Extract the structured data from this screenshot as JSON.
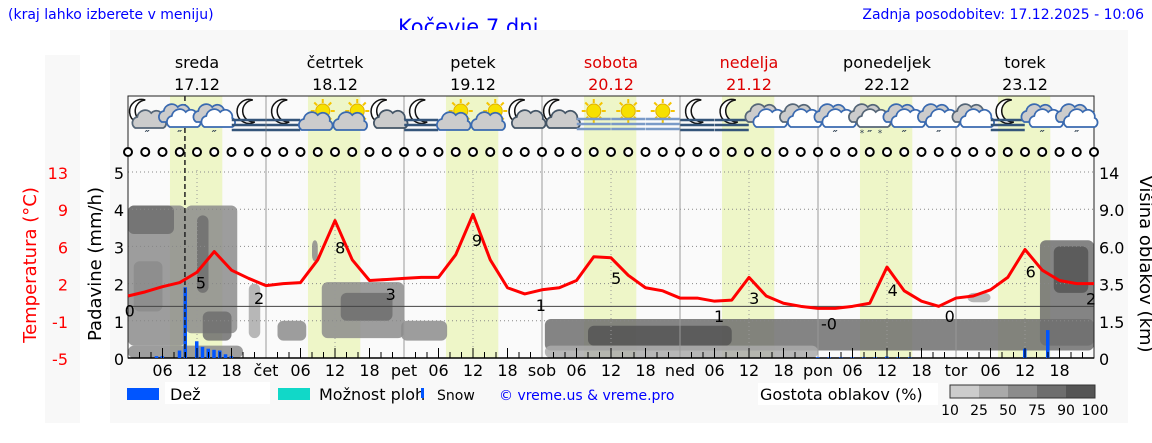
{
  "header": {
    "menu_hint": "(kraj lahko izberete v meniju)",
    "title": "Kočevje 7 dni",
    "updated": "Zadnja posodobitev: 17.12.2025 - 10:06"
  },
  "colors": {
    "link": "#0000ff",
    "temp": "#ff0000",
    "rain": "#0055ff",
    "showers": "#11d8c8",
    "daylight": "#eef6c8",
    "plot_bg": "#f8f8f8",
    "weekend": "#dd0000"
  },
  "chart_data": {
    "type": "line",
    "title": "Kočevje 7 dni",
    "days": [
      {
        "name": "sreda",
        "date": "17.12",
        "weekend": false,
        "abbr": ""
      },
      {
        "name": "četrtek",
        "date": "18.12",
        "weekend": false,
        "abbr": "čet"
      },
      {
        "name": "petek",
        "date": "19.12",
        "weekend": false,
        "abbr": "pet"
      },
      {
        "name": "sobota",
        "date": "20.12",
        "weekend": true,
        "abbr": "sob"
      },
      {
        "name": "nedelja",
        "date": "21.12",
        "weekend": true,
        "abbr": "ned"
      },
      {
        "name": "ponedeljek",
        "date": "22.12",
        "weekend": false,
        "abbr": "pon"
      },
      {
        "name": "torek",
        "date": "23.12",
        "weekend": false,
        "abbr": "tor"
      }
    ],
    "hour_ticks": [
      "06",
      "12",
      "18"
    ],
    "daylight_hours": [
      7.3,
      16.4
    ],
    "now_hour": 9.9,
    "left_axis_temp": {
      "label": "Temperatura (°C)",
      "ticks": [
        "13",
        "9",
        "6",
        "2",
        "-1",
        "-5"
      ],
      "range": [
        -5,
        13
      ]
    },
    "left_axis_precip": {
      "label": "Padavine (mm/h)",
      "ticks": [
        "0",
        "1",
        "2",
        "3",
        "4",
        "5"
      ],
      "range": [
        0,
        5
      ]
    },
    "right_axis_cloud": {
      "label": "Višina oblakov (km)",
      "ticks": [
        "0",
        "1.5",
        "3.5",
        "6.0",
        "9.0",
        "14"
      ],
      "tick_values": [
        0,
        1.5,
        3.5,
        6,
        9,
        14
      ]
    },
    "temperature_3h": [
      1.0,
      1.4,
      1.9,
      2.3,
      3.3,
      5.3,
      3.5,
      2.7,
      2.0,
      2.2,
      2.3,
      4.5,
      8.3,
      4.5,
      2.5,
      2.6,
      2.7,
      2.8,
      2.8,
      5.0,
      8.9,
      4.5,
      1.8,
      1.2,
      1.6,
      1.8,
      2.5,
      4.8,
      4.7,
      3.0,
      1.8,
      1.5,
      0.8,
      0.8,
      0.5,
      0.6,
      2.8,
      1.0,
      0.3,
      0.0,
      -0.2,
      -0.2,
      0.0,
      0.3,
      3.8,
      1.5,
      0.5,
      0.0,
      0.8,
      1.0,
      1.6,
      2.8,
      5.5,
      3.5,
      2.5,
      2.2,
      2.2
    ],
    "temperature_labels": [
      {
        "hour": 0.3,
        "text": "0"
      },
      {
        "hour": 12.7,
        "text": "5"
      },
      {
        "hour": 22.8,
        "text": "2"
      },
      {
        "hour": 36.9,
        "text": "8"
      },
      {
        "hour": 45.7,
        "text": "3"
      },
      {
        "hour": 60.7,
        "text": "9"
      },
      {
        "hour": 71.8,
        "text": "1"
      },
      {
        "hour": 84.9,
        "text": "5"
      },
      {
        "hour": 102.8,
        "text": "1"
      },
      {
        "hour": 108.9,
        "text": "3"
      },
      {
        "hour": 121.9,
        "text": "-0"
      },
      {
        "hour": 133.0,
        "text": "4"
      },
      {
        "hour": 142.9,
        "text": "0"
      },
      {
        "hour": 157.0,
        "text": "6"
      },
      {
        "hour": 167.5,
        "text": "2"
      }
    ],
    "rain_mm_h": [
      {
        "hour": 5,
        "v": 0.05
      },
      {
        "hour": 6,
        "v": 0.05
      },
      {
        "hour": 9,
        "v": 0.2
      },
      {
        "hour": 10,
        "v": 1.9
      },
      {
        "hour": 12,
        "v": 0.45
      },
      {
        "hour": 13,
        "v": 0.3
      },
      {
        "hour": 14,
        "v": 0.25
      },
      {
        "hour": 15,
        "v": 0.22
      },
      {
        "hour": 16,
        "v": 0.2
      },
      {
        "hour": 17,
        "v": 0.1
      },
      {
        "hour": 18,
        "v": 0.05
      },
      {
        "hour": 120,
        "v": 0.02
      },
      {
        "hour": 122,
        "v": 0.02
      },
      {
        "hour": 124,
        "v": 0.02
      },
      {
        "hour": 126,
        "v": 0.02
      },
      {
        "hour": 128,
        "v": 0.02
      },
      {
        "hour": 130,
        "v": 0.02
      },
      {
        "hour": 132,
        "v": 0.04
      },
      {
        "hour": 134,
        "v": 0.02
      },
      {
        "hour": 136,
        "v": 0.02
      },
      {
        "hour": 156,
        "v": 0.25
      },
      {
        "hour": 160,
        "v": 0.75
      }
    ],
    "cloud_cells": [
      {
        "h0": 0,
        "h1": 10,
        "lo": 0.5,
        "hi": 9.5,
        "d": 55
      },
      {
        "h0": 0,
        "h1": 8,
        "lo": 7,
        "hi": 9.5,
        "d": 85
      },
      {
        "h0": 1,
        "h1": 6,
        "lo": 2,
        "hi": 5,
        "d": 70
      },
      {
        "h0": 10,
        "h1": 19,
        "lo": 1,
        "hi": 9.5,
        "d": 50
      },
      {
        "h0": 12,
        "h1": 14,
        "lo": 3,
        "hi": 8.5,
        "d": 80
      },
      {
        "h0": 13,
        "h1": 18,
        "lo": 0.7,
        "hi": 2,
        "d": 80
      },
      {
        "h0": 21,
        "h1": 23,
        "lo": 0.8,
        "hi": 3.5,
        "d": 40
      },
      {
        "h0": 0,
        "h1": 20,
        "lo": 0,
        "hi": 0.5,
        "d": 55
      },
      {
        "h0": 32,
        "h1": 33,
        "lo": 5,
        "hi": 6.5,
        "d": 60
      },
      {
        "h0": 33.7,
        "h1": 48,
        "lo": 0.8,
        "hi": 3.6,
        "d": 60
      },
      {
        "h0": 37,
        "h1": 46,
        "lo": 1.5,
        "hi": 3,
        "d": 80
      },
      {
        "h0": 26,
        "h1": 31,
        "lo": 0.7,
        "hi": 1.5,
        "d": 50
      },
      {
        "h0": 47.5,
        "h1": 55.5,
        "lo": 0.7,
        "hi": 1.5,
        "d": 70
      },
      {
        "h0": 72.5,
        "h1": 168,
        "lo": 0.3,
        "hi": 1.6,
        "d": 75
      },
      {
        "h0": 80,
        "h1": 105,
        "lo": 0.5,
        "hi": 1.3,
        "d": 90
      },
      {
        "h0": 72.5,
        "h1": 120,
        "lo": 0,
        "hi": 0.5,
        "d": 40
      },
      {
        "h0": 146,
        "h1": 150,
        "lo": 2.5,
        "hi": 3,
        "d": 30
      },
      {
        "h0": 158.6,
        "h1": 168,
        "lo": 0.5,
        "hi": 6.5,
        "d": 75
      },
      {
        "h0": 161,
        "h1": 167,
        "lo": 3,
        "hi": 6,
        "d": 90
      }
    ],
    "weather_icons": [
      "moon-cloud-rain",
      "cloud-rain",
      "cloud-rain",
      "moon-fog",
      "moon-fog",
      "sun-cloud",
      "sun-cloud",
      "moon-cloud",
      "moon-fog",
      "sun-cloud",
      "sun-cloud",
      "moon-cloud",
      "moon-cloud",
      "sun-fog",
      "sun-fog",
      "sun-fog",
      "moon-fog",
      "moon-fog",
      "cloud",
      "cloud",
      "cloud-rain",
      "cloud-sleet",
      "cloud-rain",
      "cloud-rain",
      "cloud",
      "moon-fog",
      "cloud-rain",
      "cloud-rain"
    ],
    "wind_markers": "calm",
    "legend": {
      "rain": "Dež",
      "showers": "Možnost ploh",
      "snow": "Snow",
      "credit": "© vreme.us & vreme.pro",
      "cloud_density_label": "Gostota oblakov (%)",
      "density_ticks": [
        "10",
        "25",
        "50",
        "75",
        "90",
        "100"
      ]
    }
  }
}
